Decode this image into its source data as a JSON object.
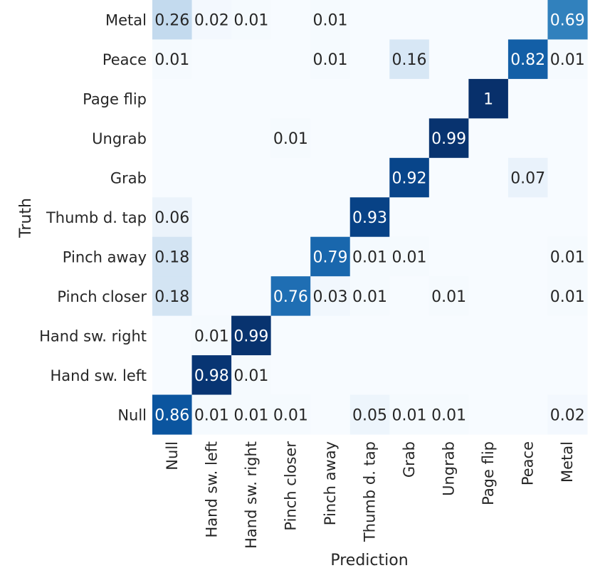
{
  "chart_data": {
    "type": "heatmap",
    "xlabel": "Prediction",
    "ylabel": "Truth",
    "x_categories": [
      "Null",
      "Hand sw. left",
      "Hand sw. right",
      "Pinch closer",
      "Pinch away",
      "Thumb d. tap",
      "Grab",
      "Ungrab",
      "Page flip",
      "Peace",
      "Metal"
    ],
    "y_categories": [
      "Metal",
      "Peace",
      "Page flip",
      "Ungrab",
      "Grab",
      "Thumb d. tap",
      "Pinch away",
      "Pinch closer",
      "Hand sw. right",
      "Hand sw. left",
      "Null"
    ],
    "values": [
      [
        0.26,
        0.02,
        0.01,
        null,
        0.01,
        null,
        null,
        null,
        null,
        null,
        0.69
      ],
      [
        0.01,
        null,
        null,
        null,
        0.01,
        null,
        0.16,
        null,
        null,
        0.82,
        0.01
      ],
      [
        null,
        null,
        null,
        null,
        null,
        null,
        null,
        null,
        1,
        null,
        null
      ],
      [
        null,
        null,
        null,
        0.01,
        null,
        null,
        null,
        0.99,
        null,
        null,
        null
      ],
      [
        null,
        null,
        null,
        null,
        null,
        null,
        0.92,
        null,
        null,
        0.07,
        null
      ],
      [
        0.06,
        null,
        null,
        null,
        null,
        0.93,
        null,
        null,
        null,
        null,
        null
      ],
      [
        0.18,
        null,
        null,
        null,
        0.79,
        0.01,
        0.01,
        null,
        null,
        null,
        0.01
      ],
      [
        0.18,
        null,
        null,
        0.76,
        0.03,
        0.01,
        null,
        0.01,
        null,
        null,
        0.01
      ],
      [
        null,
        0.01,
        0.99,
        null,
        null,
        null,
        null,
        null,
        null,
        null,
        null
      ],
      [
        null,
        0.98,
        0.01,
        null,
        null,
        null,
        null,
        null,
        null,
        null,
        null
      ],
      [
        0.86,
        0.01,
        0.01,
        0.01,
        null,
        0.05,
        0.01,
        0.01,
        null,
        null,
        0.02
      ]
    ],
    "colormap": "Blues",
    "color_low": "#f7fbff",
    "color_high": "#08306b",
    "grid": false,
    "legend": "none"
  }
}
